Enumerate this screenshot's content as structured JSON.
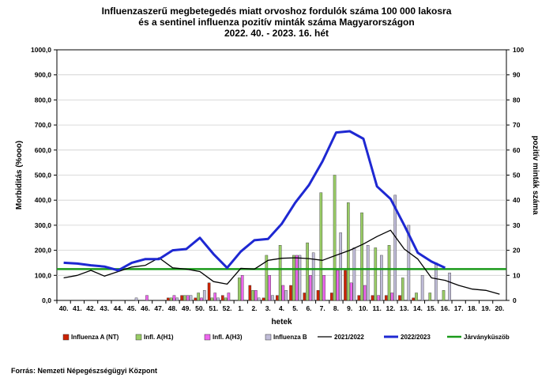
{
  "chart_data": {
    "type": "bar",
    "title_lines": [
      "Influenzaszerű megbetegedés miatt orvoshoz fordulók száma 100 000 lakosra",
      "és a sentinel influenza pozitív minták száma Magyarországon",
      "2022. 40. - 2023. 16. hét"
    ],
    "xlabel": "hetek",
    "ylabel_left": "Morbiditás (%ooo)",
    "ylabel_right": "pozitív minták száma",
    "ylim_left": [
      0,
      1000
    ],
    "ylim_right": [
      0,
      100
    ],
    "left_ticks": [
      "0,0",
      "100,0",
      "200,0",
      "300,0",
      "400,0",
      "500,0",
      "600,0",
      "700,0",
      "800,0",
      "900,0",
      "1000,0"
    ],
    "right_ticks": [
      "0",
      "10",
      "20",
      "30",
      "40",
      "50",
      "60",
      "70",
      "80",
      "90",
      "100"
    ],
    "categories": [
      "40.",
      "41.",
      "42.",
      "43.",
      "44.",
      "45.",
      "46.",
      "47.",
      "48.",
      "49.",
      "50.",
      "51.",
      "52.",
      "1.",
      "2.",
      "3.",
      "4.",
      "5.",
      "6.",
      "7.",
      "8.",
      "9.",
      "10.",
      "11.",
      "12.",
      "13.",
      "14.",
      "15.",
      "16.",
      "17.",
      "18.",
      "19.",
      "20."
    ],
    "bar_series": [
      {
        "name": "Influenza A (NT)",
        "color": "#cc2200",
        "values": [
          0,
          0,
          0,
          0,
          0,
          0,
          0,
          0,
          1,
          2,
          1,
          7,
          2,
          0,
          6,
          1,
          2,
          6,
          3,
          4,
          3,
          12,
          2,
          2,
          2,
          2,
          1,
          0,
          0,
          null,
          null,
          null,
          null
        ]
      },
      {
        "name": "Infl. A(H1)",
        "color": "#99cc66",
        "values": [
          0,
          0,
          0,
          0,
          0,
          0,
          0,
          0,
          1,
          2,
          3,
          1,
          1,
          9,
          4,
          18,
          22,
          18,
          23,
          43,
          50,
          39,
          35,
          21,
          22,
          9,
          3,
          3,
          4,
          null,
          null,
          null,
          null
        ]
      },
      {
        "name": "Infl. A(H3)",
        "color": "#ee66ee",
        "values": [
          0,
          0,
          0,
          0,
          0,
          0,
          2,
          0,
          2,
          2,
          1,
          3,
          3,
          10,
          4,
          10,
          6,
          18,
          10,
          10,
          12,
          7,
          6,
          2,
          3,
          0,
          0,
          0,
          0,
          null,
          null,
          null,
          null
        ]
      },
      {
        "name": "Influenza B",
        "color": "#c0bcd8",
        "values": [
          0,
          0,
          0,
          0,
          0,
          1,
          0,
          0,
          1,
          2,
          4,
          1,
          0,
          0,
          1,
          2,
          4,
          18,
          19,
          0,
          27,
          21,
          22,
          18,
          42,
          30,
          10,
          15,
          11,
          null,
          null,
          null,
          null
        ]
      }
    ],
    "line_series": [
      {
        "name": "2021/2022",
        "color": "#000000",
        "values": [
          90,
          100,
          120,
          97,
          115,
          133,
          140,
          170,
          130,
          125,
          115,
          75,
          65,
          128,
          125,
          160,
          168,
          170,
          167,
          160,
          180,
          200,
          225,
          255,
          280,
          205,
          165,
          90,
          80,
          60,
          45,
          40,
          25
        ]
      },
      {
        "name": "2022/2023",
        "color": "#1e28d2",
        "values": [
          150,
          147,
          140,
          135,
          120,
          150,
          165,
          165,
          200,
          205,
          250,
          185,
          130,
          195,
          240,
          245,
          305,
          390,
          460,
          555,
          670,
          675,
          645,
          455,
          405,
          300,
          190,
          155,
          130,
          null,
          null,
          null,
          null
        ]
      }
    ],
    "threshold": {
      "name": "Járványküszöb",
      "value": 125,
      "color": "#1a9a1a"
    },
    "legend_position": "bottom",
    "grid": "horizontal"
  },
  "source": "Forrás: Nemzeti Népegészségügyi Központ"
}
